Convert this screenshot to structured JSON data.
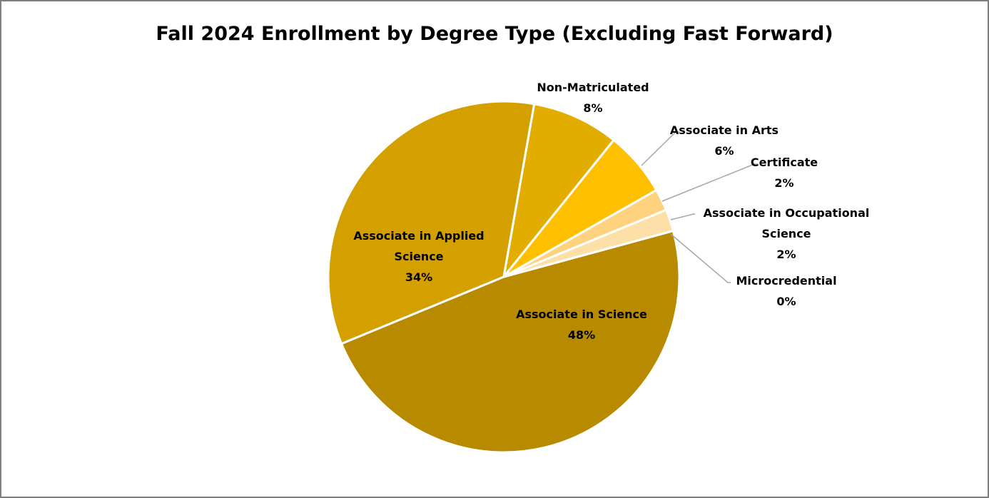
{
  "chart_data": {
    "type": "pie",
    "title": "Fall 2024 Enrollment by Degree Type (Excluding Fast Forward)",
    "categories": [
      "Associate in Science",
      "Associate in Applied Science",
      "Non-Matriculated",
      "Associate in Arts",
      "Certificate",
      "Associate in Occupational Science",
      "Microcredential"
    ],
    "values": [
      48,
      34,
      8,
      6,
      2,
      2,
      0
    ],
    "value_labels": [
      "48%",
      "34%",
      "8%",
      "6%",
      "2%",
      "2%",
      "0%"
    ],
    "colors": [
      "#b88a00",
      "#d4a000",
      "#e3ad00",
      "#ffc000",
      "#ffd280",
      "#fde0a8",
      "#fff1d6"
    ]
  }
}
